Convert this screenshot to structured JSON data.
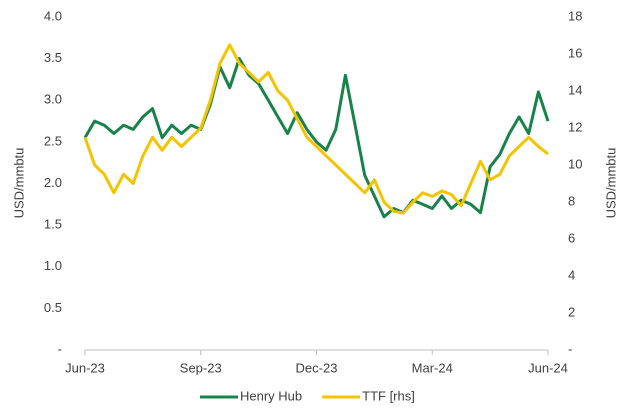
{
  "chart_data": {
    "type": "line",
    "xlabel": null,
    "ylabel": "USD/mmbtu",
    "y2label": "USD/mmbtu",
    "x": [
      0,
      0.25,
      0.5,
      0.75,
      1,
      1.25,
      1.5,
      1.75,
      2,
      2.25,
      2.5,
      2.75,
      3,
      3.25,
      3.5,
      3.75,
      4,
      4.25,
      4.5,
      4.75,
      5,
      5.25,
      5.5,
      5.75,
      6,
      6.25,
      6.5,
      6.75,
      7,
      7.25,
      7.5,
      7.75,
      8,
      8.25,
      8.5,
      8.75,
      9,
      9.25,
      9.5,
      9.75,
      10,
      10.25,
      10.5,
      10.75,
      11,
      11.25,
      11.5,
      11.75,
      12
    ],
    "xlim": [
      0,
      12
    ],
    "xticks": [
      {
        "value": 0,
        "label": "Jun-23"
      },
      {
        "value": 3,
        "label": "Sep-23"
      },
      {
        "value": 6,
        "label": "Dec-23"
      },
      {
        "value": 9,
        "label": "Mar-24"
      },
      {
        "value": 12,
        "label": "Jun-24"
      }
    ],
    "ylim": [
      0,
      4
    ],
    "yticks": [
      {
        "value": 0,
        "label": "-"
      },
      0.5,
      {
        "value": 1,
        "label": "1.0"
      },
      1.5,
      {
        "value": 2,
        "label": "2.0"
      },
      2.5,
      {
        "value": 3,
        "label": "3.0"
      },
      3.5,
      {
        "value": 4,
        "label": "4.0"
      }
    ],
    "y2lim": [
      0,
      18
    ],
    "y2ticks": [
      {
        "value": 0,
        "label": "-"
      },
      2,
      4,
      6,
      8,
      10,
      12,
      14,
      16,
      18
    ],
    "series": [
      {
        "name": "Henry Hub",
        "color": "#17834a",
        "values": [
          2.55,
          2.75,
          2.7,
          2.6,
          2.7,
          2.65,
          2.8,
          2.9,
          2.55,
          2.7,
          2.6,
          2.7,
          2.65,
          2.95,
          3.4,
          3.15,
          3.5,
          3.3,
          3.2,
          3.0,
          2.8,
          2.6,
          2.85,
          2.65,
          2.5,
          2.4,
          2.65,
          3.3,
          2.7,
          2.1,
          1.85,
          1.6,
          1.7,
          1.65,
          1.8,
          1.75,
          1.7,
          1.85,
          1.7,
          1.8,
          1.75,
          1.65,
          2.2,
          2.35,
          2.6,
          2.8,
          2.6,
          3.1,
          2.75
        ]
      },
      {
        "name": "TTF [rhs]",
        "color": "#f5c400",
        "axis": "y2",
        "values": [
          11.5,
          10,
          9.5,
          8.5,
          9.5,
          9,
          10.5,
          11.5,
          10.8,
          11.5,
          11,
          11.5,
          12,
          13.5,
          15.5,
          16.5,
          15.5,
          15,
          14.5,
          15,
          14,
          13.5,
          12.5,
          11.5,
          11,
          10.5,
          10,
          9.5,
          9,
          8.5,
          9.2,
          8,
          7.5,
          7.4,
          8,
          8.5,
          8.3,
          8.6,
          8.4,
          7.8,
          9,
          10.2,
          9.2,
          9.5,
          10.5,
          11,
          11.5,
          11,
          10.6
        ]
      }
    ]
  }
}
